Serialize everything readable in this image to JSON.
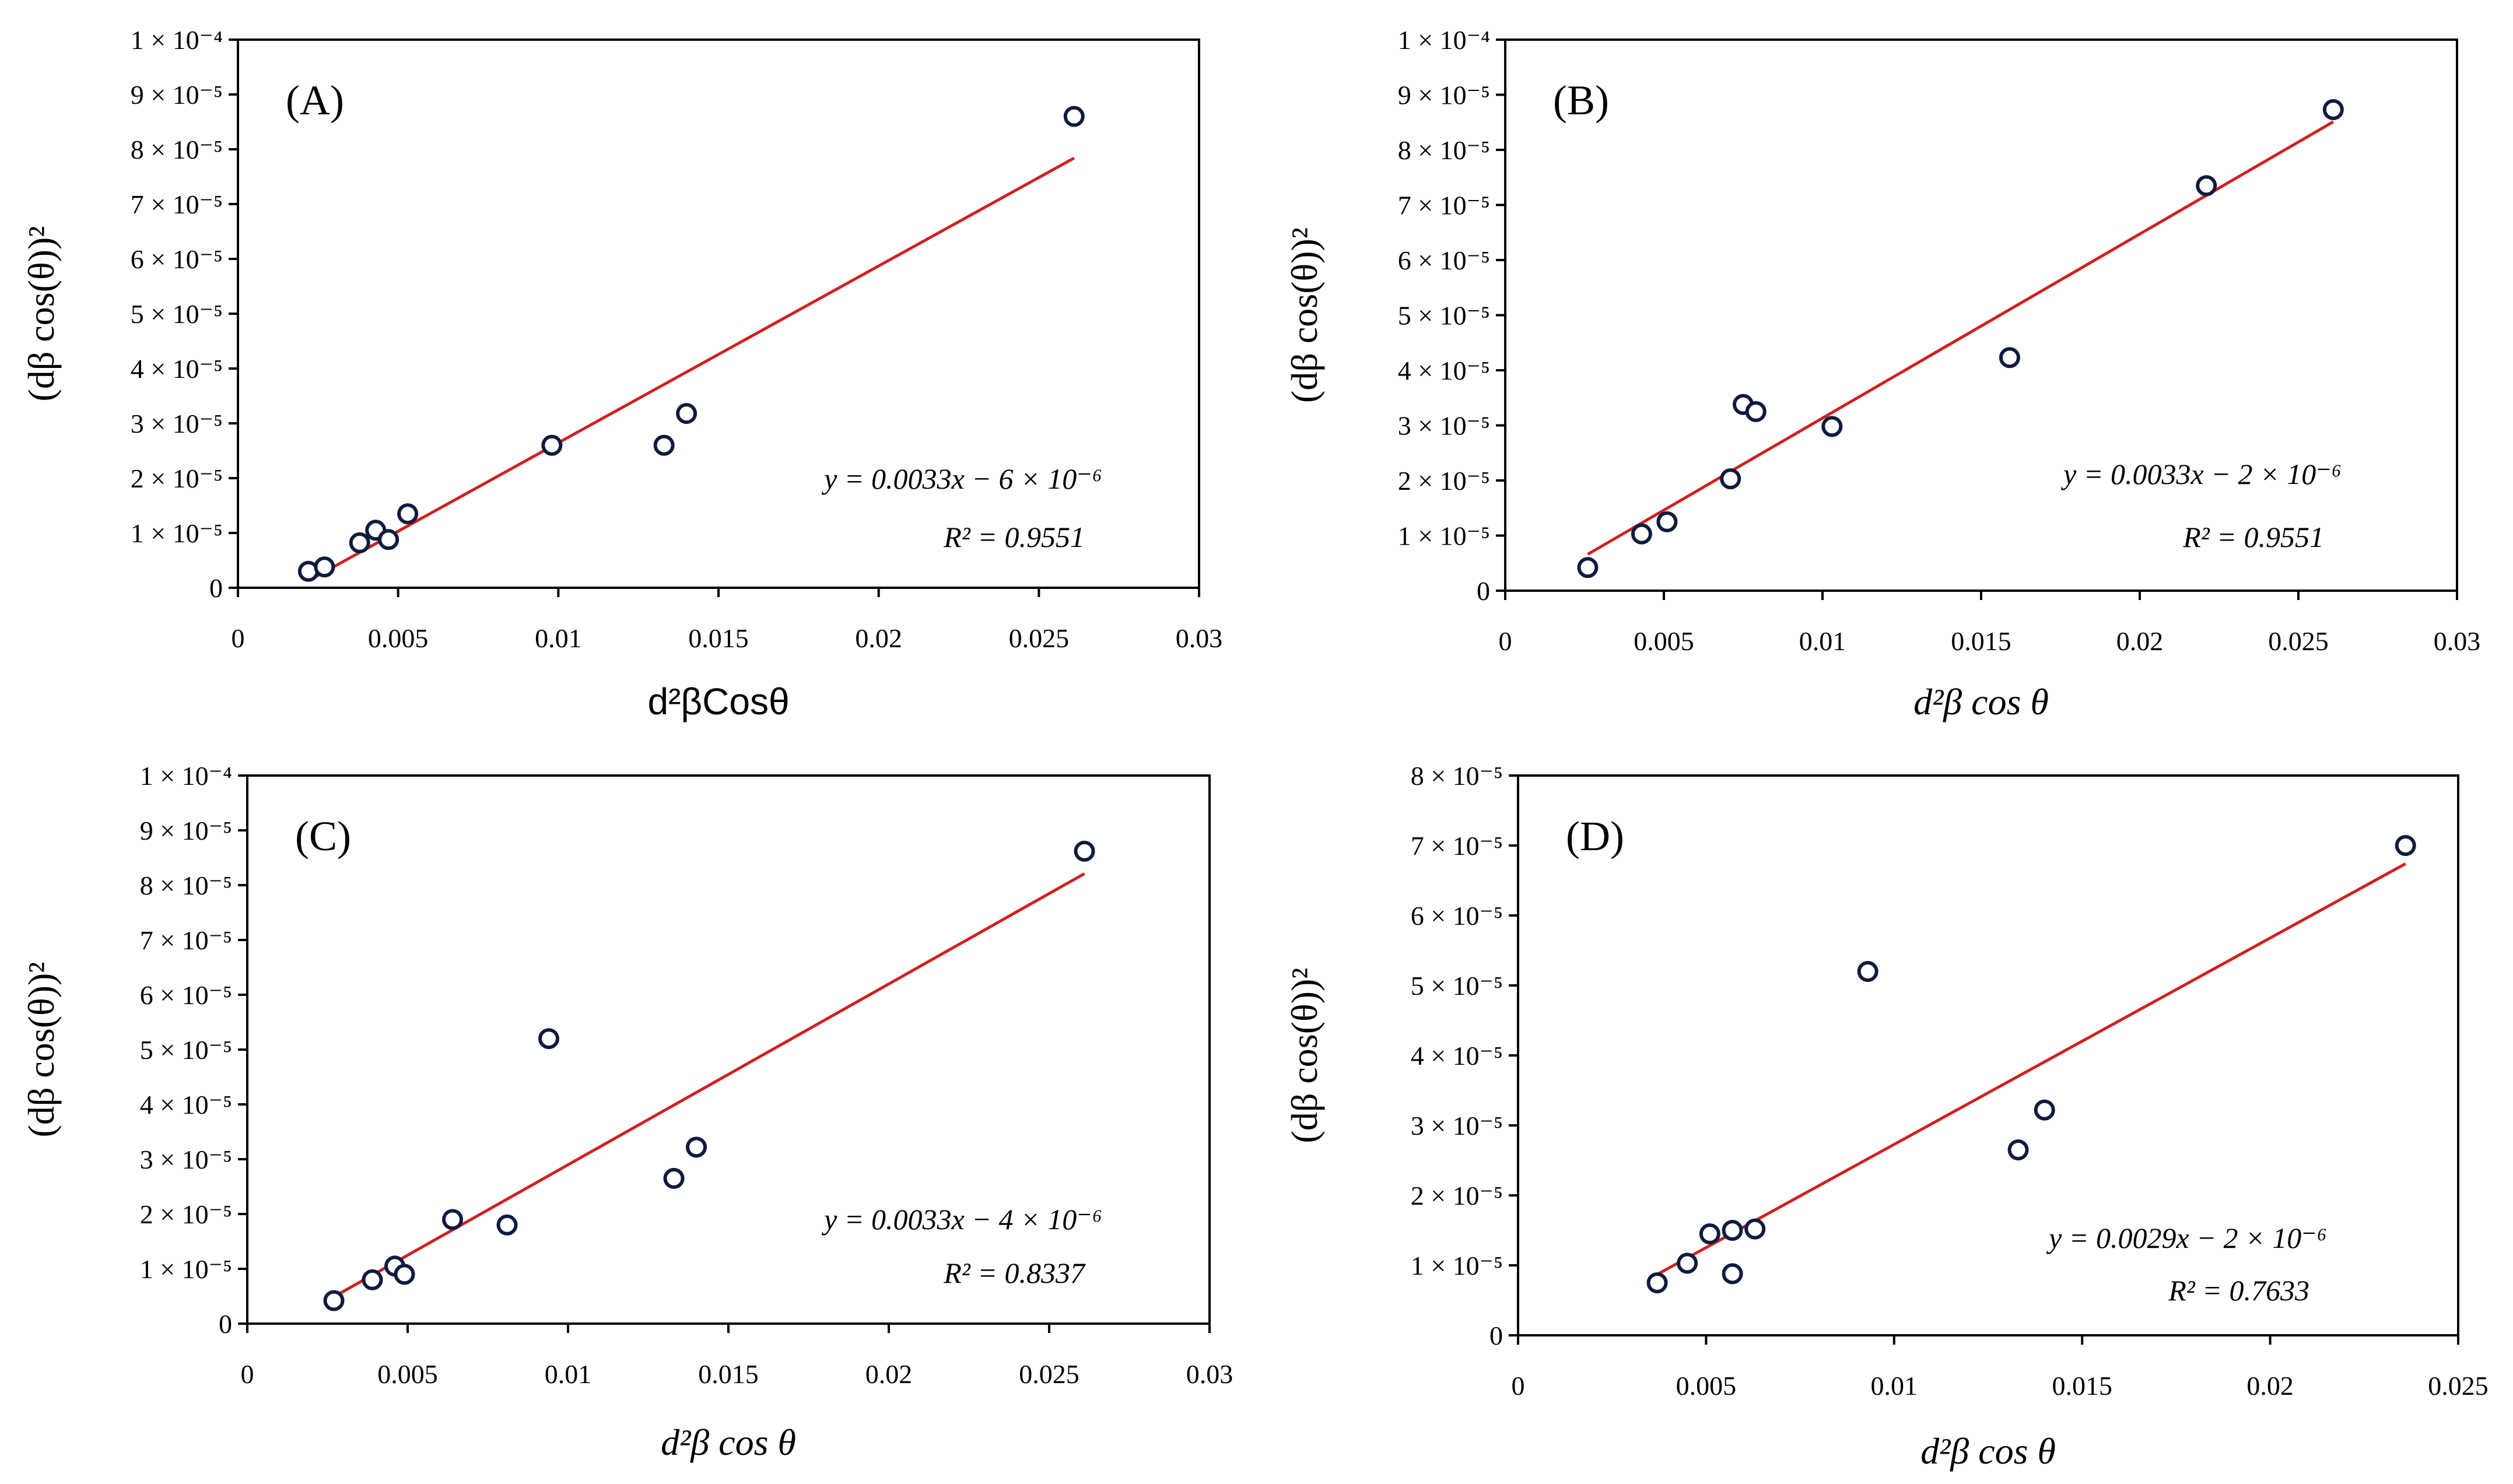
{
  "chart_data": [
    {
      "type": "scatter",
      "panel_label": "(A)",
      "xlabel": "d²βCosθ",
      "ylabel": "(dβ cos(θ))²",
      "xlim": [
        0,
        0.03
      ],
      "ylim": [
        0,
        0.0001
      ],
      "x_ticks": [
        {
          "v": 0,
          "label": "0"
        },
        {
          "v": 0.005,
          "label": "0.005"
        },
        {
          "v": 0.01,
          "label": "0.01"
        },
        {
          "v": 0.015,
          "label": "0.015"
        },
        {
          "v": 0.02,
          "label": "0.02"
        },
        {
          "v": 0.025,
          "label": "0.025"
        },
        {
          "v": 0.03,
          "label": "0.03"
        }
      ],
      "y_ticks": [
        {
          "v": 0,
          "label": "0"
        },
        {
          "v": 1e-05,
          "label": "1 × 10⁻⁵"
        },
        {
          "v": 2e-05,
          "label": "2 × 10⁻⁵"
        },
        {
          "v": 3e-05,
          "label": "3 × 10⁻⁵"
        },
        {
          "v": 4e-05,
          "label": "4 × 10⁻⁵"
        },
        {
          "v": 5e-05,
          "label": "5 × 10⁻⁵"
        },
        {
          "v": 6e-05,
          "label": "6 × 10⁻⁵"
        },
        {
          "v": 7e-05,
          "label": "7 × 10⁻⁵"
        },
        {
          "v": 8e-05,
          "label": "8 × 10⁻⁵"
        },
        {
          "v": 9e-05,
          "label": "9 × 10⁻⁵"
        },
        {
          "v": 0.0001,
          "label": "1 × 10⁻⁴"
        }
      ],
      "points": [
        {
          "x": 0.0022,
          "y": 3e-06
        },
        {
          "x": 0.0027,
          "y": 3.8e-06
        },
        {
          "x": 0.0038,
          "y": 8.2e-06
        },
        {
          "x": 0.0043,
          "y": 1.05e-05
        },
        {
          "x": 0.0047,
          "y": 8.8e-06
        },
        {
          "x": 0.0053,
          "y": 1.35e-05
        },
        {
          "x": 0.0098,
          "y": 2.6e-05
        },
        {
          "x": 0.0133,
          "y": 2.6e-05
        },
        {
          "x": 0.014,
          "y": 3.18e-05
        },
        {
          "x": 0.0261,
          "y": 8.6e-05
        }
      ],
      "fit": {
        "x": [
          0.0023,
          0.0261
        ],
        "y": [
          1.6e-06,
          7.84e-05
        ]
      },
      "equation": "y = 0.0033x − 6 × 10⁻⁶",
      "r_squared": "R² = 0.9551",
      "marker_color": "#0d1b3e",
      "line_color": "#d02020"
    },
    {
      "type": "scatter",
      "panel_label": "(B)",
      "xlabel": "d²β cos θ",
      "ylabel": "(dβ cos(θ))²",
      "xlim": [
        0,
        0.03
      ],
      "ylim": [
        0,
        0.0001
      ],
      "x_ticks": [
        {
          "v": 0,
          "label": "0"
        },
        {
          "v": 0.005,
          "label": "0.005"
        },
        {
          "v": 0.01,
          "label": "0.01"
        },
        {
          "v": 0.015,
          "label": "0.015"
        },
        {
          "v": 0.02,
          "label": "0.02"
        },
        {
          "v": 0.025,
          "label": "0.025"
        },
        {
          "v": 0.03,
          "label": "0.03"
        }
      ],
      "y_ticks": [
        {
          "v": 0,
          "label": "0"
        },
        {
          "v": 1e-05,
          "label": "1 × 10⁻⁵"
        },
        {
          "v": 2e-05,
          "label": "2 × 10⁻⁵"
        },
        {
          "v": 3e-05,
          "label": "3 × 10⁻⁵"
        },
        {
          "v": 4e-05,
          "label": "4 × 10⁻⁵"
        },
        {
          "v": 5e-05,
          "label": "5 × 10⁻⁵"
        },
        {
          "v": 6e-05,
          "label": "6 × 10⁻⁵"
        },
        {
          "v": 7e-05,
          "label": "7 × 10⁻⁵"
        },
        {
          "v": 8e-05,
          "label": "8 × 10⁻⁵"
        },
        {
          "v": 9e-05,
          "label": "9 × 10⁻⁵"
        },
        {
          "v": 0.0001,
          "label": "1 × 10⁻⁴"
        }
      ],
      "points": [
        {
          "x": 0.0026,
          "y": 4.2e-06
        },
        {
          "x": 0.0043,
          "y": 1.03e-05
        },
        {
          "x": 0.0051,
          "y": 1.25e-05
        },
        {
          "x": 0.0071,
          "y": 2.03e-05
        },
        {
          "x": 0.0075,
          "y": 3.38e-05
        },
        {
          "x": 0.0079,
          "y": 3.25e-05
        },
        {
          "x": 0.0103,
          "y": 2.98e-05
        },
        {
          "x": 0.0159,
          "y": 4.23e-05
        },
        {
          "x": 0.0221,
          "y": 7.35e-05
        },
        {
          "x": 0.0261,
          "y": 8.73e-05
        }
      ],
      "fit": {
        "x": [
          0.0026,
          0.0261
        ],
        "y": [
          6.6e-06,
          8.51e-05
        ]
      },
      "equation": "y = 0.0033x − 2 × 10⁻⁶",
      "r_squared": "R² = 0.9551",
      "marker_color": "#0d1b3e",
      "line_color": "#d02020"
    },
    {
      "type": "scatter",
      "panel_label": "(C)",
      "xlabel": "d²β cos θ",
      "ylabel": "(dβ cos(θ))²",
      "xlim": [
        0,
        0.03
      ],
      "ylim": [
        0,
        0.0001
      ],
      "x_ticks": [
        {
          "v": 0,
          "label": "0"
        },
        {
          "v": 0.005,
          "label": "0.005"
        },
        {
          "v": 0.01,
          "label": "0.01"
        },
        {
          "v": 0.015,
          "label": "0.015"
        },
        {
          "v": 0.02,
          "label": "0.02"
        },
        {
          "v": 0.025,
          "label": "0.025"
        },
        {
          "v": 0.03,
          "label": "0.03"
        }
      ],
      "y_ticks": [
        {
          "v": 0,
          "label": "0"
        },
        {
          "v": 1e-05,
          "label": "1 × 10⁻⁵"
        },
        {
          "v": 2e-05,
          "label": "2 × 10⁻⁵"
        },
        {
          "v": 3e-05,
          "label": "3 × 10⁻⁵"
        },
        {
          "v": 4e-05,
          "label": "4 × 10⁻⁵"
        },
        {
          "v": 5e-05,
          "label": "5 × 10⁻⁵"
        },
        {
          "v": 6e-05,
          "label": "6 × 10⁻⁵"
        },
        {
          "v": 7e-05,
          "label": "7 × 10⁻⁵"
        },
        {
          "v": 8e-05,
          "label": "8 × 10⁻⁵"
        },
        {
          "v": 9e-05,
          "label": "9 × 10⁻⁵"
        },
        {
          "v": 0.0001,
          "label": "1 × 10⁻⁴"
        }
      ],
      "points": [
        {
          "x": 0.0027,
          "y": 4.2e-06
        },
        {
          "x": 0.0039,
          "y": 8e-06
        },
        {
          "x": 0.0046,
          "y": 1.05e-05
        },
        {
          "x": 0.0049,
          "y": 9e-06
        },
        {
          "x": 0.0064,
          "y": 1.9e-05
        },
        {
          "x": 0.0081,
          "y": 1.8e-05
        },
        {
          "x": 0.0094,
          "y": 5.2e-05
        },
        {
          "x": 0.0133,
          "y": 2.65e-05
        },
        {
          "x": 0.014,
          "y": 3.22e-05
        },
        {
          "x": 0.0261,
          "y": 8.62e-05
        }
      ],
      "fit": {
        "x": [
          0.0027,
          0.0261
        ],
        "y": [
          4.9e-06,
          8.21e-05
        ]
      },
      "equation": "y = 0.0033x − 4 × 10⁻⁶",
      "r_squared": "R² = 0.8337",
      "marker_color": "#0d1b3e",
      "line_color": "#d02020"
    },
    {
      "type": "scatter",
      "panel_label": "(D)",
      "xlabel": "d²β cos θ",
      "ylabel": "(dβ cos(θ))²",
      "xlim": [
        0,
        0.025
      ],
      "ylim": [
        0,
        8e-05
      ],
      "x_ticks": [
        {
          "v": 0,
          "label": "0"
        },
        {
          "v": 0.005,
          "label": "0.005"
        },
        {
          "v": 0.01,
          "label": "0.01"
        },
        {
          "v": 0.015,
          "label": "0.015"
        },
        {
          "v": 0.02,
          "label": "0.02"
        },
        {
          "v": 0.025,
          "label": "0.025"
        }
      ],
      "y_ticks": [
        {
          "v": 0,
          "label": "0"
        },
        {
          "v": 1e-05,
          "label": "1 × 10⁻⁵"
        },
        {
          "v": 2e-05,
          "label": "2 × 10⁻⁵"
        },
        {
          "v": 3e-05,
          "label": "3 × 10⁻⁵"
        },
        {
          "v": 4e-05,
          "label": "4 × 10⁻⁵"
        },
        {
          "v": 5e-05,
          "label": "5 × 10⁻⁵"
        },
        {
          "v": 6e-05,
          "label": "6 × 10⁻⁵"
        },
        {
          "v": 7e-05,
          "label": "7 × 10⁻⁵"
        },
        {
          "v": 8e-05,
          "label": "8 × 10⁻⁵"
        }
      ],
      "points": [
        {
          "x": 0.0037,
          "y": 7.5e-06
        },
        {
          "x": 0.0045,
          "y": 1.03e-05
        },
        {
          "x": 0.0051,
          "y": 1.45e-05
        },
        {
          "x": 0.0057,
          "y": 1.5e-05
        },
        {
          "x": 0.0057,
          "y": 8.8e-06
        },
        {
          "x": 0.0063,
          "y": 1.52e-05
        },
        {
          "x": 0.0093,
          "y": 5.2e-05
        },
        {
          "x": 0.0133,
          "y": 2.65e-05
        },
        {
          "x": 0.014,
          "y": 3.22e-05
        },
        {
          "x": 0.0236,
          "y": 7e-05
        }
      ],
      "fit": {
        "x": [
          0.0037,
          0.0236
        ],
        "y": [
          8.7e-06,
          6.74e-05
        ]
      },
      "equation": "y = 0.0029x − 2 × 10⁻⁶",
      "r_squared": "R² = 0.7633",
      "marker_color": "#0d1b3e",
      "line_color": "#d02020"
    }
  ]
}
